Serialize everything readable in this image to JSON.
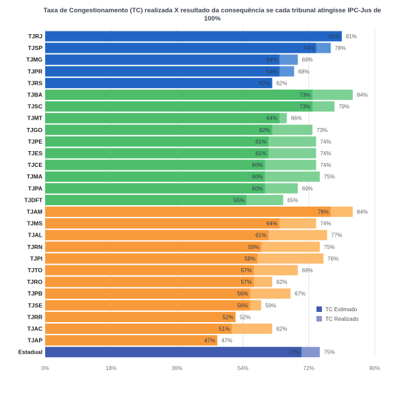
{
  "chart_data": {
    "type": "bar",
    "orientation": "horizontal",
    "title": "Taxa de Congestionamento (TC) realizada X resultado da consequência se cada tribunal atingisse IPC-Jus de 100%",
    "categories": [
      "TJRJ",
      "TJSP",
      "TJMG",
      "TJPR",
      "TJRS",
      "TJBA",
      "TJSC",
      "TJMT",
      "TJGO",
      "TJPE",
      "TJES",
      "TJCE",
      "TJMA",
      "TJPA",
      "TJDFT",
      "TJAM",
      "TJMS",
      "TJAL",
      "TJRN",
      "TJPI",
      "TJTO",
      "TJRO",
      "TJPB",
      "TJSE",
      "TJRR",
      "TJAC",
      "TJAP",
      "Estadual"
    ],
    "groups": [
      "blue",
      "blue",
      "blue",
      "blue",
      "blue",
      "green",
      "green",
      "green",
      "green",
      "green",
      "green",
      "green",
      "green",
      "green",
      "green",
      "orange",
      "orange",
      "orange",
      "orange",
      "orange",
      "orange",
      "orange",
      "orange",
      "orange",
      "orange",
      "orange",
      "orange",
      "estadual"
    ],
    "series": [
      {
        "name": "TC Estimado",
        "values": [
          81,
          74,
          64,
          64,
          62,
          73,
          73,
          64,
          62,
          61,
          61,
          60,
          60,
          60,
          55,
          78,
          64,
          61,
          59,
          58,
          57,
          57,
          56,
          56,
          52,
          51,
          47,
          70
        ]
      },
      {
        "name": "TC Realizado",
        "values": [
          81,
          78,
          69,
          68,
          62,
          84,
          79,
          66,
          73,
          74,
          74,
          74,
          75,
          69,
          65,
          84,
          74,
          77,
          75,
          76,
          69,
          62,
          67,
          59,
          52,
          62,
          47,
          75
        ]
      }
    ],
    "value_labels": {
      "estimado": [
        "81%",
        "74%",
        "64%",
        "64%",
        "62%",
        "73%",
        "73%",
        "64%",
        "62%",
        "61%",
        "61%",
        "60%",
        "60%",
        "60%",
        "55%",
        "78%",
        "64%",
        "61%",
        "59%",
        "58%",
        "57%",
        "57%",
        "56%",
        "56%",
        "52%",
        "51%",
        "47%",
        "70%"
      ],
      "realizado": [
        "81%",
        "78%",
        "69%",
        "68%",
        "62%",
        "84%",
        "79%",
        "66%",
        "73%",
        "74%",
        "74%",
        "74%",
        "75%",
        "69%",
        "65%",
        "84%",
        "74%",
        "77%",
        "75%",
        "76%",
        "69%",
        "62%",
        "67%",
        "59%",
        "52%",
        "62%",
        "47%",
        "75%"
      ]
    },
    "x_ticks": [
      0,
      18,
      36,
      54,
      72,
      90
    ],
    "x_tick_labels": [
      "0%",
      "18%",
      "36%",
      "54%",
      "72%",
      "90%"
    ],
    "xlim": [
      0,
      90
    ],
    "grid": true,
    "legend": {
      "position": "bottom-right",
      "entries": [
        "TC Estimado",
        "TC Realizado"
      ]
    },
    "colors": {
      "blue": {
        "estimado": "#2166c4",
        "realizado": "#5b93d8"
      },
      "green": {
        "estimado": "#4dbd6c",
        "realizado": "#7dd194"
      },
      "orange": {
        "estimado": "#f99a3a",
        "realizado": "#fdbb6e"
      },
      "estadual": {
        "estimado": "#3e5bb0",
        "realizado": "#8494cf"
      },
      "legend_estimado": "#3e5bb0",
      "legend_realizado": "#8a94c9"
    }
  }
}
